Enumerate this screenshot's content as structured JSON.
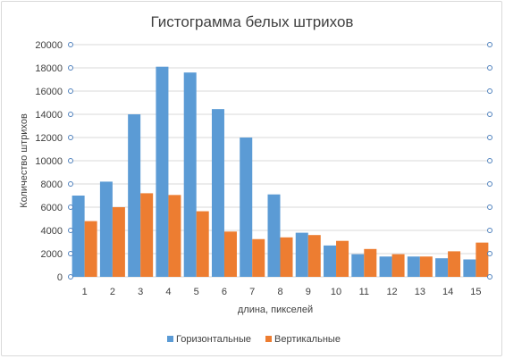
{
  "chart_data": {
    "type": "bar",
    "title": "Гистограмма белых штрихов",
    "xlabel": "длина, пикселей",
    "ylabel": "Количество штрихов",
    "categories": [
      "1",
      "2",
      "3",
      "4",
      "5",
      "6",
      "7",
      "8",
      "9",
      "10",
      "11",
      "12",
      "13",
      "14",
      "15"
    ],
    "ylim": [
      0,
      20000
    ],
    "yticks": [
      0,
      2000,
      4000,
      6000,
      8000,
      10000,
      12000,
      14000,
      16000,
      18000,
      20000
    ],
    "grid": true,
    "legend_position": "bottom",
    "series": [
      {
        "name": "Горизонтальные",
        "color": "#5b9bd5",
        "values": [
          7000,
          8200,
          14000,
          18100,
          17600,
          14450,
          12000,
          7100,
          3800,
          2700,
          1950,
          1750,
          1750,
          1600,
          1500
        ]
      },
      {
        "name": "Вертикальные",
        "color": "#ed7d31",
        "values": [
          4800,
          6000,
          7200,
          7050,
          5650,
          3900,
          3250,
          3400,
          3600,
          3100,
          2400,
          1950,
          1750,
          2200,
          2950
        ]
      }
    ]
  }
}
